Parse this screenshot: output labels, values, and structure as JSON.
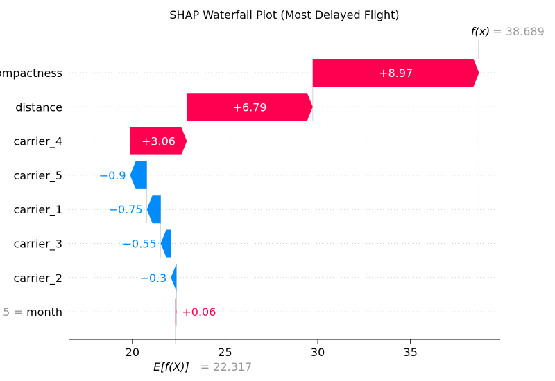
{
  "chart_data": {
    "type": "waterfall",
    "title": "SHAP Waterfall Plot (Most Delayed Flight)",
    "base_value": 22.317,
    "output_value": 38.689,
    "base_label": "E[f(X)]",
    "output_label": "f(x)",
    "base_value_text": "22.317",
    "output_value_text": "38.689",
    "features": [
      {
        "name": "compactness",
        "value_text": "",
        "shap": 8.97,
        "label": "+8.97"
      },
      {
        "name": "distance",
        "value_text": "",
        "shap": 6.79,
        "label": "+6.79"
      },
      {
        "name": "carrier_4",
        "value_text": "",
        "shap": 3.06,
        "label": "+3.06"
      },
      {
        "name": "carrier_5",
        "value_text": "",
        "shap": -0.9,
        "label": "−0.9"
      },
      {
        "name": "carrier_1",
        "value_text": "",
        "shap": -0.75,
        "label": "−0.75"
      },
      {
        "name": "carrier_3",
        "value_text": "",
        "shap": -0.55,
        "label": "−0.55"
      },
      {
        "name": "carrier_2",
        "value_text": "",
        "shap": -0.3,
        "label": "−0.3"
      },
      {
        "name": "month",
        "value_text": "5",
        "shap": 0.06,
        "label": "+0.06"
      }
    ],
    "x_ticks": [
      20,
      25,
      30,
      35
    ],
    "xlim": [
      16.6,
      39.8
    ],
    "colors": {
      "positive": "#ff0051",
      "negative": "#008bfb",
      "grid": "#cccccc",
      "muted": "#999999"
    }
  }
}
